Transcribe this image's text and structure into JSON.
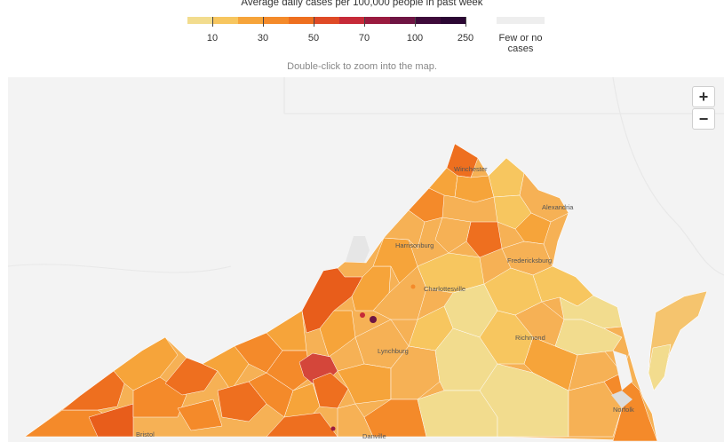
{
  "legend": {
    "title": "Average daily cases per 100,000 people in past week",
    "colors": [
      "#f2dc8e",
      "#f7c65f",
      "#f6a43a",
      "#f48a2a",
      "#ee6f1f",
      "#df4a26",
      "#c62a38",
      "#9a1a3f",
      "#6e1443",
      "#3e0a3a",
      "#2b0733"
    ],
    "ticks": [
      "10",
      "30",
      "50",
      "70",
      "100",
      "250"
    ],
    "no_case_label": "Few or no cases",
    "no_case_color": "#eeeeee"
  },
  "map": {
    "hint": "Double-click to zoom into the map.",
    "zoom_in_label": "+",
    "zoom_out_label": "−",
    "cities": [
      "Winchester",
      "Alexandria",
      "Harrisonburg",
      "Fredericksburg",
      "Charlottesville",
      "Richmond",
      "Lynchburg",
      "Norfolk",
      "Bristol",
      "Danville"
    ]
  }
}
